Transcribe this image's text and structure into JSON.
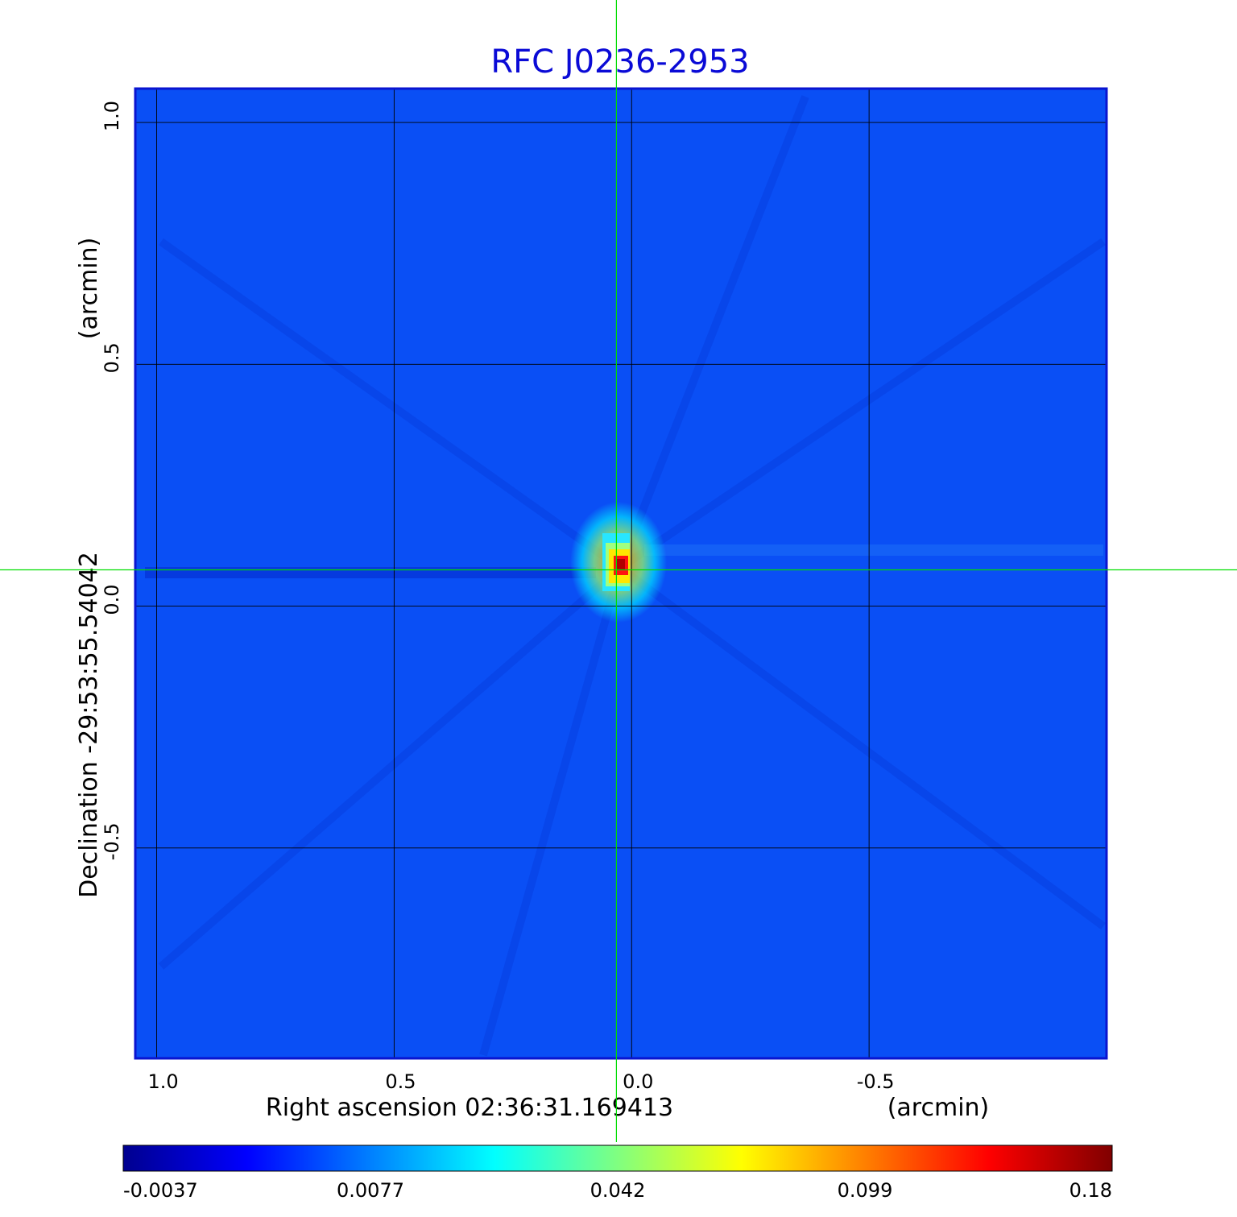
{
  "chart_data": {
    "type": "heatmap",
    "title": "RFC J0236-2953",
    "xlabel": "Right ascension  02:36:31.169413",
    "x_unit": "(arcmin)",
    "ylabel": "Declination  -29:53:55.54042",
    "y_unit": "(arcmin)",
    "x_ticks": [
      {
        "label": "1.0",
        "value": 1.0
      },
      {
        "label": "0.5",
        "value": 0.5
      },
      {
        "label": "0.0",
        "value": 0.0
      },
      {
        "label": "-0.5",
        "value": -0.5
      }
    ],
    "y_ticks": [
      {
        "label": "1.0",
        "value": 1.0
      },
      {
        "label": "0.5",
        "value": 0.5
      },
      {
        "label": "0.0",
        "value": 0.0
      },
      {
        "label": "-0.5",
        "value": -0.5
      }
    ],
    "xlim": [
      1.045,
      -1.0
    ],
    "ylim": [
      -0.935,
      1.07
    ],
    "grid": true,
    "colormap": "jet",
    "colorbar": {
      "orientation": "horizontal",
      "position": "bottom",
      "labels": [
        "-0.0037",
        "0.0077",
        "0.042",
        "0.099",
        "0.18"
      ],
      "range": [
        -0.0037,
        0.18
      ]
    },
    "crosshair": {
      "x": 0.032,
      "y": 0.075,
      "color": "#00dd00"
    },
    "source_peak": {
      "x": 0.02,
      "y": 0.085,
      "value": 0.18
    },
    "background_color": "#0a4ff5",
    "frame_color": "#0a14d0"
  }
}
